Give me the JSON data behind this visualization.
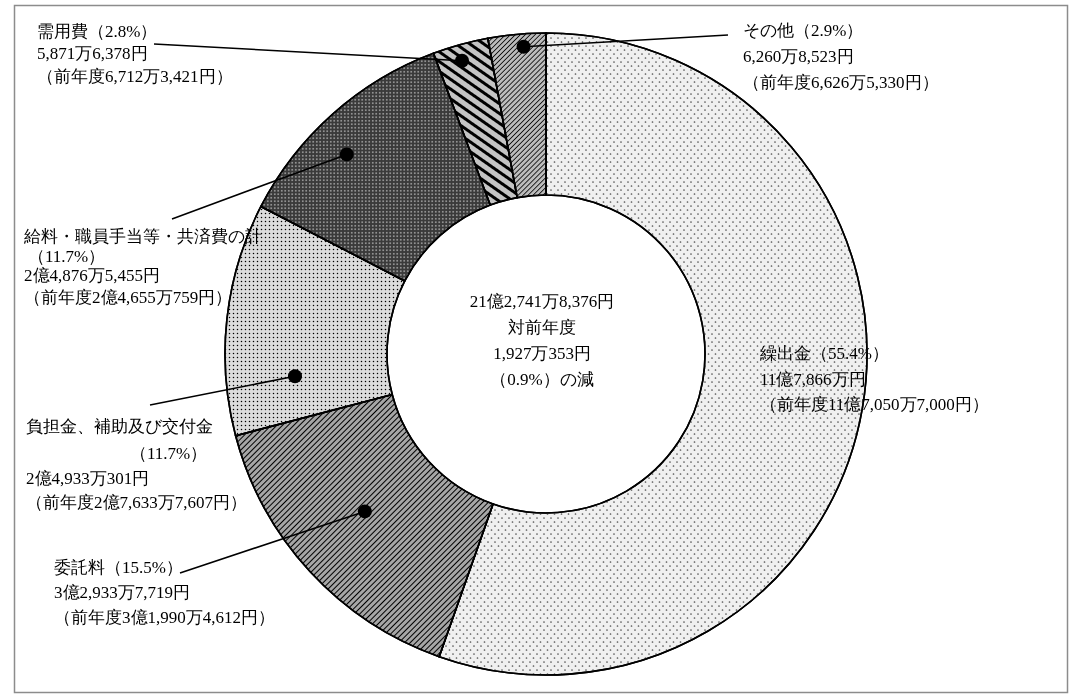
{
  "chart_data": {
    "type": "donut",
    "categories": [
      "繰出金",
      "委託料",
      "負担金、補助及び交付金",
      "給料・職員手当等・共済費の計",
      "需用費",
      "その他"
    ],
    "values": [
      55.4,
      15.5,
      11.7,
      11.7,
      2.8,
      2.9
    ],
    "colors": [
      "#f0f0f0",
      "#a6a6a6",
      "#dcdcdc",
      "#3a3a3a",
      "#c4c4c4",
      "#bcbcbc"
    ],
    "value_labels": [
      "（55.4%）",
      "（15.5%）",
      "（11.7%）",
      "（11.7%）",
      "（2.8%）",
      "（2.9%）"
    ],
    "annotations": [
      "11億7,866万円",
      "（前年度11億7,050万7,000円）",
      "3億2,933万7,719円",
      "（前年度3億1,990万4,612円）",
      "2億4,933万301円",
      "（前年度2億7,633万7,607円）",
      "2億4,876万5,455円",
      "（前年度2億4,655万759円）",
      "5,871万6,378円",
      "（前年度6,712万3,421円）",
      "6,260万8,523円",
      "（前年度6,626万5,330円）",
      "21億2,741万8,376円",
      "対前年度",
      "1,927万353円",
      "（0.9%）の減"
    ]
  }
}
